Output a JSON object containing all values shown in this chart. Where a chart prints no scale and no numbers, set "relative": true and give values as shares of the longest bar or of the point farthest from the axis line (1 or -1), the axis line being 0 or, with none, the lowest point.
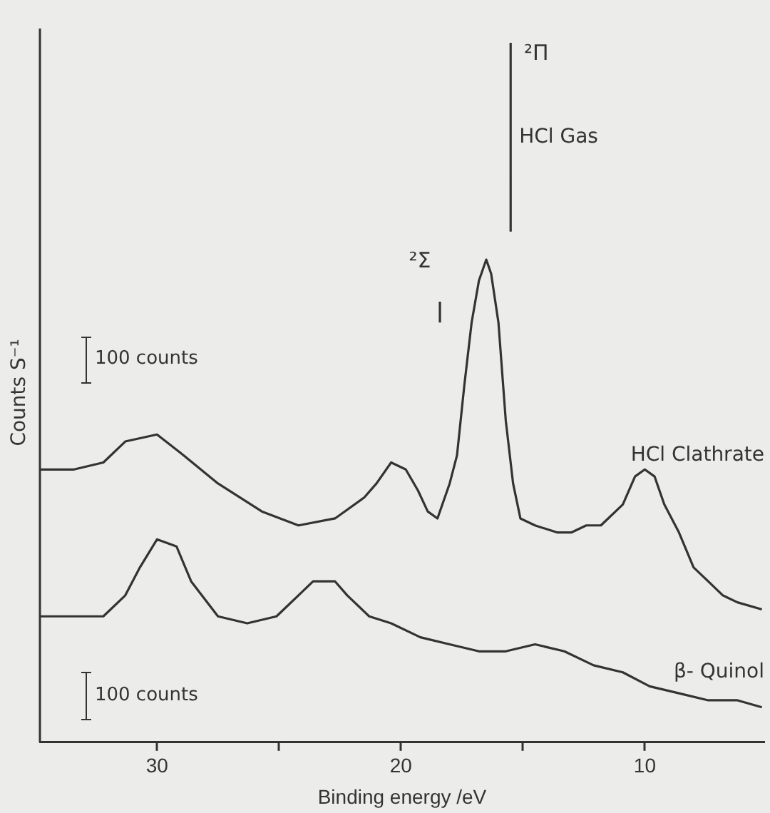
{
  "chart_data": {
    "type": "line",
    "xlabel": "Binding energy /eV",
    "ylabel": "Counts S⁻¹",
    "relative": true,
    "xlim": [
      34.8,
      5.1
    ],
    "xticks": [
      30,
      {
        "value": 25,
        "label": null
      },
      20,
      {
        "value": 15,
        "label": null
      },
      10
    ],
    "grid": false,
    "legend": false,
    "annotations": [
      "²Π",
      "²Σ",
      "100 counts",
      "100 counts"
    ],
    "series": [
      {
        "name": "HCl Gas",
        "type": "line",
        "color": "#333333",
        "x": [
          18.4,
          18.4,
          null,
          15.5,
          15.5
        ],
        "values": [
          0.6,
          0.63,
          null,
          0.73,
          1.0
        ]
      },
      {
        "name": "HCl Clathrate",
        "type": "line",
        "color": "#333333",
        "x": [
          34.8,
          33.4,
          32.2,
          31.3,
          30,
          28.9,
          27.5,
          25.7,
          24.2,
          22.7,
          21.5,
          21.0,
          20.4,
          19.8,
          19.3,
          18.9,
          18.5,
          18.0,
          17.7,
          17.4,
          17.1,
          16.8,
          16.5,
          16.3,
          16.0,
          15.7,
          15.4,
          15.1,
          14.5,
          13.6,
          13.0,
          12.4,
          11.8,
          10.9,
          10.4,
          10.0,
          9.6,
          9.2,
          8.6,
          8.0,
          7.4,
          6.8,
          6.2,
          5.2
        ],
        "values": [
          0.39,
          0.39,
          0.4,
          0.43,
          0.44,
          0.41,
          0.37,
          0.33,
          0.31,
          0.32,
          0.35,
          0.37,
          0.4,
          0.39,
          0.36,
          0.33,
          0.32,
          0.37,
          0.41,
          0.51,
          0.6,
          0.66,
          0.69,
          0.67,
          0.6,
          0.46,
          0.37,
          0.32,
          0.31,
          0.3,
          0.3,
          0.31,
          0.31,
          0.34,
          0.38,
          0.39,
          0.38,
          0.34,
          0.3,
          0.25,
          0.23,
          0.21,
          0.2,
          0.19
        ]
      },
      {
        "name": "β- Quinol",
        "type": "line",
        "color": "#333333",
        "x": [
          34.8,
          33.4,
          32.2,
          31.3,
          30.7,
          30,
          29.2,
          28.6,
          27.5,
          26.3,
          25.1,
          24.2,
          23.6,
          23.0,
          22.7,
          22.2,
          21.3,
          20.4,
          19.2,
          18.0,
          16.8,
          15.7,
          14.5,
          13.3,
          12.1,
          10.9,
          9.8,
          8.6,
          7.4,
          6.2,
          5.2
        ],
        "values": [
          0.18,
          0.18,
          0.18,
          0.21,
          0.25,
          0.29,
          0.28,
          0.23,
          0.18,
          0.17,
          0.18,
          0.21,
          0.23,
          0.23,
          0.23,
          0.21,
          0.18,
          0.17,
          0.15,
          0.14,
          0.13,
          0.13,
          0.14,
          0.13,
          0.11,
          0.1,
          0.08,
          0.07,
          0.06,
          0.06,
          0.05
        ]
      }
    ]
  }
}
